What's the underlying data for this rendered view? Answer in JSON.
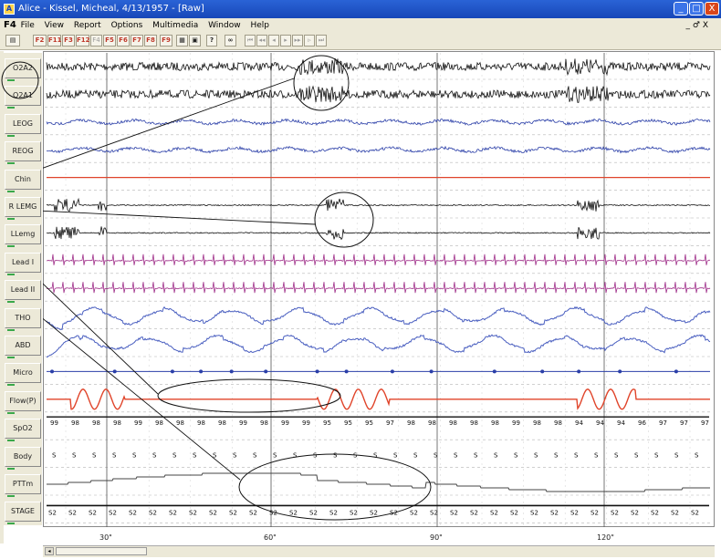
{
  "window": {
    "title": "Alice - Kissel, Micheal, 4/13/1957 - [Raw]",
    "app_icon": "A",
    "controls": [
      "_",
      "□",
      "X"
    ]
  },
  "menubar": {
    "f4": "F4",
    "items": [
      "File",
      "View",
      "Report",
      "Options",
      "Multimedia",
      "Window",
      "Help"
    ],
    "mdi_controls": "_ ♂ X"
  },
  "toolbar": {
    "fkeys": [
      "F2",
      "F11",
      "F3",
      "F12",
      "F4",
      "F5",
      "F6",
      "F7",
      "F8",
      "F9"
    ],
    "disabled_keys": [
      "F4"
    ]
  },
  "channels": [
    {
      "label": "O2A2",
      "color": "#111111",
      "type": "eeg"
    },
    {
      "label": "O2A1",
      "color": "#111111",
      "type": "eeg"
    },
    {
      "label": "LEOG",
      "color": "#2b3fa8",
      "type": "eog"
    },
    {
      "label": "REOG",
      "color": "#2b3fa8",
      "type": "eog"
    },
    {
      "label": "Chin",
      "color": "#e0442a",
      "type": "flat"
    },
    {
      "label": "R LEMG",
      "color": "#111111",
      "type": "emg"
    },
    {
      "label": "LLemg",
      "color": "#111111",
      "type": "emg"
    },
    {
      "label": "Lead I",
      "color": "#a0308a",
      "type": "ecg"
    },
    {
      "label": "Lead II",
      "color": "#a0308a",
      "type": "ecg"
    },
    {
      "label": "THO",
      "color": "#4a5fc0",
      "type": "resp"
    },
    {
      "label": "ABD",
      "color": "#4a5fc0",
      "type": "resp"
    },
    {
      "label": "Micro",
      "color": "#2b3fa8",
      "type": "dots"
    },
    {
      "label": "Flow(P)",
      "color": "#e0442a",
      "type": "flow"
    },
    {
      "label": "SpO2",
      "color": "#111111",
      "type": "numbers"
    },
    {
      "label": "Body",
      "color": "#111111",
      "type": "body"
    },
    {
      "label": "PTTm",
      "color": "#444444",
      "type": "step"
    },
    {
      "label": "STAGE",
      "color": "#111111",
      "type": "stage"
    }
  ],
  "spo2_values": [
    "99",
    "98",
    "98",
    "98",
    "99",
    "98",
    "98",
    "98",
    "98",
    "99",
    "98",
    "99",
    "99",
    "95",
    "95",
    "95",
    "97",
    "98",
    "98",
    "98",
    "98",
    "98",
    "99",
    "98",
    "98",
    "94",
    "94",
    "94",
    "96",
    "97",
    "97",
    "97"
  ],
  "body_values": [
    "S",
    "S",
    "S",
    "S",
    "S",
    "S",
    "S",
    "S",
    "S",
    "S",
    "S",
    "S",
    "S",
    "S",
    "S",
    "S",
    "S",
    "S",
    "S",
    "S",
    "S",
    "S",
    "S",
    "S",
    "S",
    "S",
    "S",
    "S",
    "S",
    "S",
    "S",
    "S",
    "S"
  ],
  "stage_values": [
    "S2",
    "S2",
    "S2",
    "S2",
    "S2",
    "S2",
    "S2",
    "S2",
    "S2",
    "S2",
    "S2",
    "S2",
    "S2",
    "S2",
    "S2",
    "S2",
    "S2",
    "S2",
    "S2",
    "S2",
    "S2",
    "S2",
    "S2",
    "S2",
    "S2",
    "S2",
    "S2",
    "S2",
    "S2",
    "S2",
    "S2",
    "S2",
    "S2"
  ],
  "time_ticks": [
    "30\"",
    "60\"",
    "90\"",
    "120\""
  ],
  "colors": {
    "accent": "#1747b8",
    "red_trace": "#e0442a",
    "blue_trace": "#2b3fa8",
    "ecg": "#a0308a"
  }
}
